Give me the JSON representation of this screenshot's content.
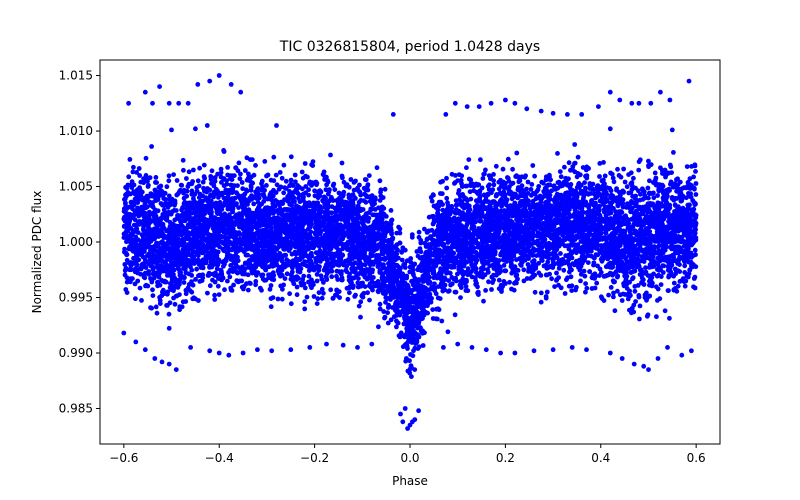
{
  "chart_data": {
    "type": "scatter",
    "title": "TIC 0326815804, period 1.0428 days",
    "xlabel": "Phase",
    "ylabel": "Normalized PDC flux",
    "xlim": [
      -0.65,
      0.65
    ],
    "ylim": [
      0.9818,
      1.0164
    ],
    "xticks": [
      -0.6,
      -0.4,
      -0.2,
      0.0,
      0.2,
      0.4,
      0.6
    ],
    "xtick_labels": [
      "−0.6",
      "−0.4",
      "−0.2",
      "0.0",
      "0.2",
      "0.4",
      "0.6"
    ],
    "yticks": [
      0.985,
      0.99,
      0.995,
      1.0,
      1.005,
      1.01,
      1.015
    ],
    "ytick_labels": [
      "0.985",
      "0.990",
      "0.995",
      "1.000",
      "1.005",
      "1.010",
      "1.015"
    ],
    "grid": false,
    "marker_color": "#0000ff",
    "series": [
      {
        "marker": "circle",
        "band": {
          "x_range": [
            -0.6,
            0.6
          ],
          "lower": [
            [
              -0.6,
              0.9925
            ],
            [
              -0.55,
              0.9915
            ],
            [
              -0.5,
              0.9905
            ],
            [
              -0.45,
              0.9925
            ],
            [
              -0.3,
              0.993
            ],
            [
              -0.15,
              0.9925
            ],
            [
              -0.07,
              0.9915
            ],
            [
              -0.03,
              0.9895
            ],
            [
              -0.01,
              0.986
            ],
            [
              0.0,
              0.9845
            ],
            [
              0.01,
              0.9855
            ],
            [
              0.03,
              0.9885
            ],
            [
              0.06,
              0.991
            ],
            [
              0.1,
              0.992
            ],
            [
              0.2,
              0.993
            ],
            [
              0.35,
              0.993
            ],
            [
              0.45,
              0.9915
            ],
            [
              0.5,
              0.991
            ],
            [
              0.55,
              0.9925
            ],
            [
              0.6,
              0.993
            ]
          ],
          "upper": [
            [
              -0.6,
              1.009
            ],
            [
              -0.55,
              1.0095
            ],
            [
              -0.5,
              1.009
            ],
            [
              -0.4,
              1.0095
            ],
            [
              -0.3,
              1.009
            ],
            [
              -0.15,
              1.009
            ],
            [
              -0.07,
              1.0085
            ],
            [
              -0.04,
              1.006
            ],
            [
              -0.02,
              1.0035
            ],
            [
              0.0,
              1.002
            ],
            [
              0.02,
              1.004
            ],
            [
              0.04,
              1.0065
            ],
            [
              0.07,
              1.0085
            ],
            [
              0.15,
              1.0095
            ],
            [
              0.3,
              1.0095
            ],
            [
              0.4,
              1.01
            ],
            [
              0.5,
              1.0095
            ],
            [
              0.55,
              1.0095
            ],
            [
              0.6,
              1.0095
            ]
          ]
        },
        "outliers": [
          [
            -0.59,
            1.0125
          ],
          [
            -0.555,
            1.0135
          ],
          [
            -0.54,
            1.0125
          ],
          [
            -0.525,
            1.014
          ],
          [
            -0.505,
            1.0125
          ],
          [
            -0.485,
            1.0125
          ],
          [
            -0.465,
            1.0125
          ],
          [
            -0.445,
            1.0142
          ],
          [
            -0.42,
            1.0145
          ],
          [
            -0.4,
            1.015
          ],
          [
            -0.375,
            1.0142
          ],
          [
            -0.355,
            1.0135
          ],
          [
            -0.45,
            1.0102
          ],
          [
            -0.425,
            1.0105
          ],
          [
            -0.5,
            1.0101
          ],
          [
            -0.28,
            1.0105
          ],
          [
            -0.035,
            1.0115
          ],
          [
            0.075,
            1.0115
          ],
          [
            0.095,
            1.0125
          ],
          [
            0.12,
            1.0122
          ],
          [
            0.145,
            1.0122
          ],
          [
            0.17,
            1.0125
          ],
          [
            0.2,
            1.0128
          ],
          [
            0.22,
            1.0125
          ],
          [
            0.245,
            1.012
          ],
          [
            0.275,
            1.0118
          ],
          [
            0.3,
            1.0116
          ],
          [
            0.33,
            1.0115
          ],
          [
            0.36,
            1.0115
          ],
          [
            0.395,
            1.0122
          ],
          [
            0.42,
            1.0135
          ],
          [
            0.44,
            1.0128
          ],
          [
            0.465,
            1.0125
          ],
          [
            0.48,
            1.0125
          ],
          [
            0.505,
            1.0125
          ],
          [
            0.525,
            1.0135
          ],
          [
            0.545,
            1.0128
          ],
          [
            0.585,
            1.0145
          ],
          [
            0.42,
            1.0102
          ],
          [
            0.55,
            1.0101
          ],
          [
            -0.6,
            0.9918
          ],
          [
            -0.575,
            0.991
          ],
          [
            -0.555,
            0.9903
          ],
          [
            -0.535,
            0.9895
          ],
          [
            -0.52,
            0.9892
          ],
          [
            -0.505,
            0.989
          ],
          [
            -0.49,
            0.9885
          ],
          [
            -0.46,
            0.9905
          ],
          [
            -0.42,
            0.9902
          ],
          [
            -0.4,
            0.99
          ],
          [
            -0.38,
            0.9898
          ],
          [
            -0.35,
            0.99
          ],
          [
            -0.32,
            0.9903
          ],
          [
            -0.29,
            0.9902
          ],
          [
            -0.25,
            0.9903
          ],
          [
            -0.21,
            0.9905
          ],
          [
            -0.175,
            0.9908
          ],
          [
            -0.14,
            0.9907
          ],
          [
            -0.11,
            0.9905
          ],
          [
            -0.08,
            0.9908
          ],
          [
            0.07,
            0.9905
          ],
          [
            0.1,
            0.9908
          ],
          [
            0.13,
            0.9905
          ],
          [
            0.16,
            0.9903
          ],
          [
            0.19,
            0.99
          ],
          [
            0.22,
            0.99
          ],
          [
            0.26,
            0.9902
          ],
          [
            0.3,
            0.9903
          ],
          [
            0.34,
            0.9905
          ],
          [
            0.37,
            0.9903
          ],
          [
            0.42,
            0.99
          ],
          [
            0.445,
            0.9895
          ],
          [
            0.47,
            0.989
          ],
          [
            0.49,
            0.9888
          ],
          [
            0.5,
            0.9885
          ],
          [
            0.52,
            0.9895
          ],
          [
            0.54,
            0.9905
          ],
          [
            0.57,
            0.9898
          ],
          [
            0.59,
            0.9902
          ],
          [
            -0.02,
            0.9845
          ],
          [
            -0.015,
            0.9838
          ],
          [
            -0.005,
            0.9832
          ],
          [
            0.0,
            0.9835
          ],
          [
            0.005,
            0.9838
          ],
          [
            0.01,
            0.984
          ],
          [
            0.018,
            0.9848
          ],
          [
            -0.01,
            0.985
          ]
        ]
      }
    ]
  }
}
